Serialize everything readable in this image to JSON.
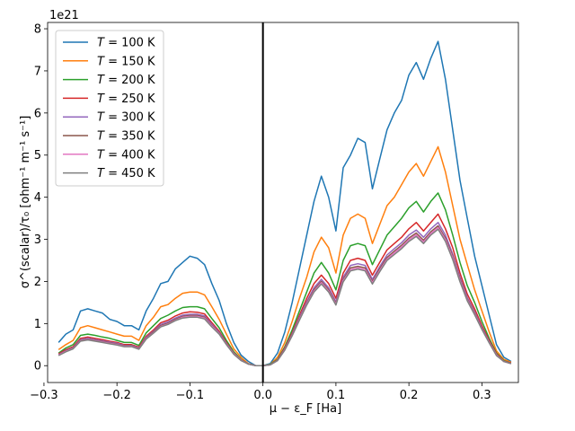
{
  "chart_data": {
    "type": "line",
    "title": "",
    "xlabel": "μ − ε_F [Ha]",
    "ylabel": "σ^(scalar)/τ₀ [ohm⁻¹ m⁻¹ s⁻¹]",
    "y_scale_label": "1e21",
    "xlim": [
      -0.295,
      0.35
    ],
    "ylim": [
      -0.4,
      8.15
    ],
    "x_ticks": [
      -0.3,
      -0.2,
      -0.1,
      0.0,
      0.1,
      0.2,
      0.3
    ],
    "x_tick_labels": [
      "−0.3",
      "−0.2",
      "−0.1",
      "0.0",
      "0.1",
      "0.2",
      "0.3"
    ],
    "y_ticks": [
      0,
      1,
      2,
      3,
      4,
      5,
      6,
      7,
      8
    ],
    "y_tick_labels": [
      "0",
      "1",
      "2",
      "3",
      "4",
      "5",
      "6",
      "7",
      "8"
    ],
    "vertical_line_x": 0.0,
    "legend_position": "upper-left",
    "x": [
      -0.28,
      -0.27,
      -0.26,
      -0.25,
      -0.24,
      -0.23,
      -0.22,
      -0.21,
      -0.2,
      -0.19,
      -0.18,
      -0.17,
      -0.16,
      -0.15,
      -0.14,
      -0.13,
      -0.12,
      -0.11,
      -0.1,
      -0.09,
      -0.08,
      -0.07,
      -0.06,
      -0.05,
      -0.04,
      -0.03,
      -0.02,
      -0.01,
      0.0,
      0.01,
      0.02,
      0.03,
      0.04,
      0.05,
      0.06,
      0.07,
      0.08,
      0.09,
      0.1,
      0.11,
      0.12,
      0.13,
      0.14,
      0.15,
      0.16,
      0.17,
      0.18,
      0.19,
      0.2,
      0.21,
      0.22,
      0.23,
      0.24,
      0.25,
      0.26,
      0.27,
      0.28,
      0.29,
      0.3,
      0.31,
      0.32,
      0.33,
      0.34
    ],
    "series": [
      {
        "name": "T = 100 K",
        "label_math": "T",
        "label_rest": " = 100 K",
        "color": "#1f77b4",
        "values": [
          0.55,
          0.75,
          0.85,
          1.3,
          1.35,
          1.3,
          1.25,
          1.1,
          1.05,
          0.95,
          0.95,
          0.85,
          1.3,
          1.6,
          1.95,
          2.0,
          2.3,
          2.45,
          2.6,
          2.55,
          2.4,
          1.95,
          1.55,
          1.0,
          0.55,
          0.25,
          0.1,
          0.0,
          0.0,
          0.05,
          0.3,
          0.8,
          1.5,
          2.3,
          3.1,
          3.9,
          4.5,
          4.0,
          3.2,
          4.7,
          5.0,
          5.4,
          5.3,
          4.2,
          4.9,
          5.6,
          6.0,
          6.3,
          6.9,
          7.2,
          6.8,
          7.3,
          7.7,
          6.8,
          5.6,
          4.4,
          3.5,
          2.6,
          1.9,
          1.2,
          0.5,
          0.2,
          0.1
        ]
      },
      {
        "name": "T = 150 K",
        "label_math": "T",
        "label_rest": " = 150 K",
        "color": "#ff7f0e",
        "values": [
          0.38,
          0.5,
          0.6,
          0.9,
          0.95,
          0.9,
          0.85,
          0.8,
          0.75,
          0.7,
          0.7,
          0.6,
          0.95,
          1.15,
          1.4,
          1.45,
          1.6,
          1.72,
          1.75,
          1.75,
          1.68,
          1.4,
          1.1,
          0.75,
          0.4,
          0.2,
          0.05,
          0.0,
          0.0,
          0.03,
          0.2,
          0.55,
          1.05,
          1.6,
          2.1,
          2.7,
          3.05,
          2.8,
          2.2,
          3.1,
          3.5,
          3.6,
          3.5,
          2.9,
          3.35,
          3.8,
          4.0,
          4.3,
          4.6,
          4.8,
          4.5,
          4.85,
          5.2,
          4.6,
          3.8,
          3.0,
          2.4,
          1.8,
          1.3,
          0.8,
          0.35,
          0.15,
          0.08
        ]
      },
      {
        "name": "T = 200 K",
        "label_math": "T",
        "label_rest": " = 200 K",
        "color": "#2ca02c",
        "values": [
          0.3,
          0.42,
          0.5,
          0.72,
          0.75,
          0.72,
          0.68,
          0.65,
          0.6,
          0.55,
          0.55,
          0.48,
          0.78,
          0.95,
          1.12,
          1.2,
          1.3,
          1.38,
          1.4,
          1.4,
          1.35,
          1.12,
          0.9,
          0.6,
          0.33,
          0.15,
          0.04,
          0.0,
          0.0,
          0.03,
          0.15,
          0.45,
          0.85,
          1.3,
          1.75,
          2.2,
          2.45,
          2.2,
          1.8,
          2.5,
          2.85,
          2.9,
          2.85,
          2.4,
          2.75,
          3.1,
          3.3,
          3.5,
          3.75,
          3.9,
          3.65,
          3.9,
          4.1,
          3.7,
          3.1,
          2.45,
          1.9,
          1.5,
          1.05,
          0.65,
          0.3,
          0.12,
          0.06
        ]
      },
      {
        "name": "T = 250 K",
        "label_math": "T",
        "label_rest": " = 250 K",
        "color": "#d62728",
        "values": [
          0.28,
          0.38,
          0.45,
          0.65,
          0.68,
          0.65,
          0.62,
          0.58,
          0.55,
          0.5,
          0.5,
          0.44,
          0.7,
          0.85,
          1.02,
          1.08,
          1.18,
          1.25,
          1.28,
          1.27,
          1.23,
          1.02,
          0.82,
          0.55,
          0.3,
          0.14,
          0.04,
          0.0,
          0.0,
          0.02,
          0.14,
          0.42,
          0.78,
          1.2,
          1.6,
          1.95,
          2.15,
          1.95,
          1.6,
          2.2,
          2.5,
          2.55,
          2.5,
          2.15,
          2.45,
          2.75,
          2.9,
          3.05,
          3.25,
          3.4,
          3.2,
          3.4,
          3.6,
          3.25,
          2.8,
          2.2,
          1.7,
          1.35,
          0.95,
          0.6,
          0.28,
          0.11,
          0.06
        ]
      },
      {
        "name": "T = 300 K",
        "label_math": "T",
        "label_rest": " = 300 K",
        "color": "#9467bd",
        "values": [
          0.26,
          0.36,
          0.43,
          0.62,
          0.65,
          0.62,
          0.59,
          0.56,
          0.53,
          0.48,
          0.48,
          0.42,
          0.67,
          0.82,
          0.98,
          1.04,
          1.13,
          1.2,
          1.22,
          1.22,
          1.18,
          0.98,
          0.79,
          0.53,
          0.29,
          0.13,
          0.04,
          0.0,
          0.0,
          0.02,
          0.13,
          0.4,
          0.75,
          1.15,
          1.52,
          1.85,
          2.05,
          1.85,
          1.52,
          2.1,
          2.38,
          2.42,
          2.38,
          2.05,
          2.35,
          2.63,
          2.78,
          2.92,
          3.1,
          3.22,
          3.05,
          3.25,
          3.4,
          3.1,
          2.65,
          2.1,
          1.62,
          1.28,
          0.9,
          0.57,
          0.26,
          0.1,
          0.05
        ]
      },
      {
        "name": "T = 350 K",
        "label_math": "T",
        "label_rest": " = 350 K",
        "color": "#8c564b",
        "values": [
          0.25,
          0.35,
          0.42,
          0.6,
          0.63,
          0.6,
          0.57,
          0.54,
          0.51,
          0.47,
          0.47,
          0.41,
          0.65,
          0.8,
          0.95,
          1.01,
          1.1,
          1.17,
          1.19,
          1.19,
          1.15,
          0.95,
          0.77,
          0.52,
          0.28,
          0.13,
          0.04,
          0.0,
          0.0,
          0.02,
          0.13,
          0.39,
          0.73,
          1.12,
          1.48,
          1.8,
          2.0,
          1.8,
          1.48,
          2.05,
          2.32,
          2.36,
          2.32,
          2.0,
          2.3,
          2.57,
          2.72,
          2.86,
          3.03,
          3.15,
          2.98,
          3.18,
          3.32,
          3.03,
          2.6,
          2.05,
          1.58,
          1.25,
          0.88,
          0.56,
          0.25,
          0.1,
          0.05
        ]
      },
      {
        "name": "T = 400 K",
        "label_math": "T",
        "label_rest": " = 400 K",
        "color": "#e377c2",
        "values": [
          0.25,
          0.34,
          0.41,
          0.59,
          0.62,
          0.59,
          0.56,
          0.53,
          0.5,
          0.46,
          0.46,
          0.4,
          0.64,
          0.78,
          0.93,
          0.99,
          1.08,
          1.15,
          1.17,
          1.17,
          1.13,
          0.94,
          0.76,
          0.51,
          0.28,
          0.13,
          0.04,
          0.0,
          0.0,
          0.02,
          0.12,
          0.38,
          0.72,
          1.1,
          1.46,
          1.77,
          1.97,
          1.77,
          1.46,
          2.02,
          2.28,
          2.32,
          2.28,
          1.97,
          2.26,
          2.53,
          2.68,
          2.82,
          2.99,
          3.11,
          2.94,
          3.14,
          3.28,
          2.99,
          2.56,
          2.02,
          1.56,
          1.23,
          0.87,
          0.55,
          0.25,
          0.1,
          0.05
        ]
      },
      {
        "name": "T = 450 K",
        "label_math": "T",
        "label_rest": " = 450 K",
        "color": "#7f7f7f",
        "values": [
          0.24,
          0.33,
          0.4,
          0.58,
          0.61,
          0.58,
          0.55,
          0.52,
          0.49,
          0.45,
          0.45,
          0.39,
          0.63,
          0.77,
          0.92,
          0.98,
          1.07,
          1.13,
          1.15,
          1.15,
          1.11,
          0.92,
          0.75,
          0.5,
          0.27,
          0.12,
          0.04,
          0.0,
          0.0,
          0.02,
          0.12,
          0.37,
          0.71,
          1.08,
          1.44,
          1.75,
          1.94,
          1.75,
          1.44,
          1.99,
          2.25,
          2.29,
          2.25,
          1.94,
          2.23,
          2.5,
          2.64,
          2.78,
          2.95,
          3.07,
          2.9,
          3.1,
          3.24,
          2.95,
          2.52,
          1.99,
          1.54,
          1.21,
          0.86,
          0.54,
          0.24,
          0.1,
          0.05
        ]
      }
    ]
  }
}
